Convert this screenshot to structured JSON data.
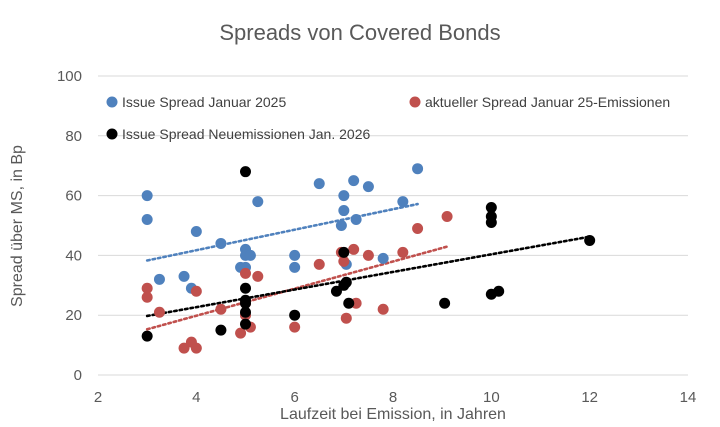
{
  "chart_data": {
    "type": "scatter",
    "title": "Spreads von Covered Bonds",
    "xlabel": "Laufzeit bei Emission, in Jahren",
    "ylabel": "Spread über MS, in Bp",
    "xlim": [
      2,
      14
    ],
    "ylim": [
      0,
      100
    ],
    "xticks": [
      "2",
      "4",
      "6",
      "8",
      "10",
      "12",
      "14"
    ],
    "yticks": [
      "0",
      "20",
      "40",
      "60",
      "80",
      "100"
    ],
    "grid": "horizontal",
    "legend_position": "top",
    "series": [
      {
        "name": "Issue Spread Januar 2025",
        "color": "#4f81bd",
        "trendline_color": "#4f81bd",
        "points": [
          [
            3.0,
            60
          ],
          [
            3.0,
            52
          ],
          [
            3.25,
            32
          ],
          [
            3.75,
            33
          ],
          [
            3.9,
            29
          ],
          [
            4.0,
            48
          ],
          [
            4.5,
            44
          ],
          [
            4.9,
            36
          ],
          [
            5.0,
            42
          ],
          [
            5.0,
            40
          ],
          [
            5.0,
            36
          ],
          [
            5.1,
            40
          ],
          [
            5.25,
            58
          ],
          [
            6.0,
            40
          ],
          [
            6.0,
            36
          ],
          [
            6.5,
            64
          ],
          [
            6.95,
            50
          ],
          [
            7.0,
            60
          ],
          [
            7.0,
            55
          ],
          [
            7.05,
            37
          ],
          [
            7.2,
            65
          ],
          [
            7.25,
            52
          ],
          [
            7.5,
            63
          ],
          [
            7.8,
            39
          ],
          [
            8.2,
            58
          ],
          [
            8.5,
            69
          ]
        ]
      },
      {
        "name": "aktueller Spread Januar 25-Emissionen",
        "color": "#c0504d",
        "trendline_color": "#c0504d",
        "points": [
          [
            3.0,
            29
          ],
          [
            3.0,
            26
          ],
          [
            3.25,
            21
          ],
          [
            3.75,
            9
          ],
          [
            3.9,
            11
          ],
          [
            4.0,
            9
          ],
          [
            4.0,
            28
          ],
          [
            4.5,
            22
          ],
          [
            4.9,
            14
          ],
          [
            5.0,
            34
          ],
          [
            5.0,
            24
          ],
          [
            5.0,
            20
          ],
          [
            5.1,
            16
          ],
          [
            5.25,
            33
          ],
          [
            6.0,
            16
          ],
          [
            6.5,
            37
          ],
          [
            6.95,
            41
          ],
          [
            7.0,
            38
          ],
          [
            7.05,
            19
          ],
          [
            7.2,
            42
          ],
          [
            7.25,
            24
          ],
          [
            7.5,
            40
          ],
          [
            7.8,
            22
          ],
          [
            8.2,
            41
          ],
          [
            8.5,
            49
          ],
          [
            9.1,
            53
          ]
        ]
      },
      {
        "name": "Issue Spread Neuemissionen Jan. 2026",
        "color": "#000000",
        "trendline_color": "#000000",
        "points": [
          [
            3.0,
            13
          ],
          [
            4.5,
            15
          ],
          [
            5.0,
            68
          ],
          [
            5.0,
            29
          ],
          [
            5.0,
            25
          ],
          [
            5.0,
            24
          ],
          [
            5.0,
            21
          ],
          [
            5.0,
            17
          ],
          [
            6.0,
            20
          ],
          [
            6.85,
            28
          ],
          [
            7.0,
            41
          ],
          [
            7.0,
            30
          ],
          [
            7.05,
            31
          ],
          [
            7.1,
            24
          ],
          [
            9.05,
            24
          ],
          [
            10.0,
            56
          ],
          [
            10.0,
            53
          ],
          [
            10.0,
            51
          ],
          [
            10.0,
            27
          ],
          [
            10.15,
            28
          ],
          [
            12.0,
            45
          ]
        ]
      }
    ]
  }
}
